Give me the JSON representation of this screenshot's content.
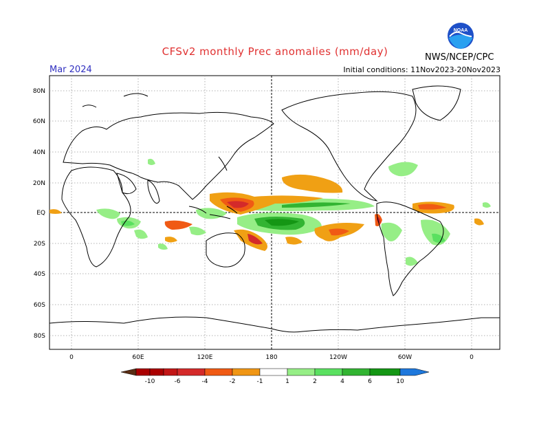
{
  "header": {
    "title": "CFSv2 monthly Prec anomalies (mm/day)",
    "valid_month": "Mar 2024",
    "initial_conditions": "Initial conditions: 11Nov2023-20Nov2023",
    "agency": "NWS/NCEP/CPC",
    "logo_text": "NOAA"
  },
  "axes": {
    "lat_labels": [
      "80N",
      "60N",
      "40N",
      "20N",
      "EQ",
      "20S",
      "40S",
      "60S",
      "80S"
    ],
    "lon_labels": [
      "0",
      "60E",
      "120E",
      "180",
      "120W",
      "60W",
      "0"
    ]
  },
  "colorbar": {
    "labels": [
      "-10",
      "-6",
      "-4",
      "-2",
      "-1",
      "1",
      "2",
      "4",
      "6",
      "10"
    ],
    "colors": [
      "#5a2d14",
      "#aa0000",
      "#d42a2a",
      "#f05a14",
      "#f09614",
      "#ffffff",
      "#96ee86",
      "#5ae060",
      "#32b432",
      "#149614",
      "#1e78dc"
    ]
  },
  "colors": {
    "title": "#e03030",
    "month": "#3030c0",
    "wet_light": "#96ee86",
    "wet_mid": "#5ae060",
    "wet_dark": "#149614",
    "dry_light": "#f0a014",
    "dry_mid": "#f05a14",
    "dry_dark": "#d42a2a"
  }
}
